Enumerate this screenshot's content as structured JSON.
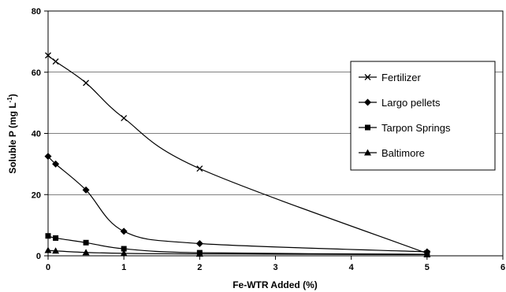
{
  "chart_data": {
    "type": "line",
    "xlabel": "Fe-WTR Added (%)",
    "ylabel_text": "Soluble P (mg L",
    "ylabel_exp": "-1",
    "ylabel_close": ")",
    "xlim": [
      0,
      6
    ],
    "ylim": [
      0,
      80
    ],
    "x_ticks": [
      0,
      1,
      2,
      3,
      4,
      5,
      6
    ],
    "y_ticks": [
      0,
      20,
      40,
      60,
      80
    ],
    "x_tick_labels": [
      "0",
      "1",
      "2",
      "3",
      "4",
      "5",
      "6"
    ],
    "y_tick_labels": [
      "0",
      "20",
      "40",
      "60",
      "80"
    ],
    "gridlines": "horizontal",
    "legend_position": "right",
    "series": [
      {
        "name": "Fertilizer",
        "marker": "x",
        "x": [
          0,
          0.1,
          0.5,
          1,
          2,
          5
        ],
        "y": [
          65.5,
          63.5,
          56.5,
          45,
          28.5,
          0.8
        ]
      },
      {
        "name": "Largo pellets",
        "marker": "diamond",
        "x": [
          0,
          0.1,
          0.5,
          1,
          2,
          5
        ],
        "y": [
          32.5,
          30,
          21.5,
          8,
          4,
          1.3
        ]
      },
      {
        "name": "Tarpon Springs",
        "marker": "square",
        "x": [
          0,
          0.1,
          0.5,
          1,
          2,
          5
        ],
        "y": [
          6.5,
          5.8,
          4.3,
          2.3,
          1,
          0.5
        ]
      },
      {
        "name": "Baltimore",
        "marker": "triangle",
        "x": [
          0,
          0.1,
          0.5,
          1,
          2,
          5
        ],
        "y": [
          1.8,
          1.6,
          1.1,
          0.8,
          0.6,
          0.4
        ]
      }
    ]
  }
}
